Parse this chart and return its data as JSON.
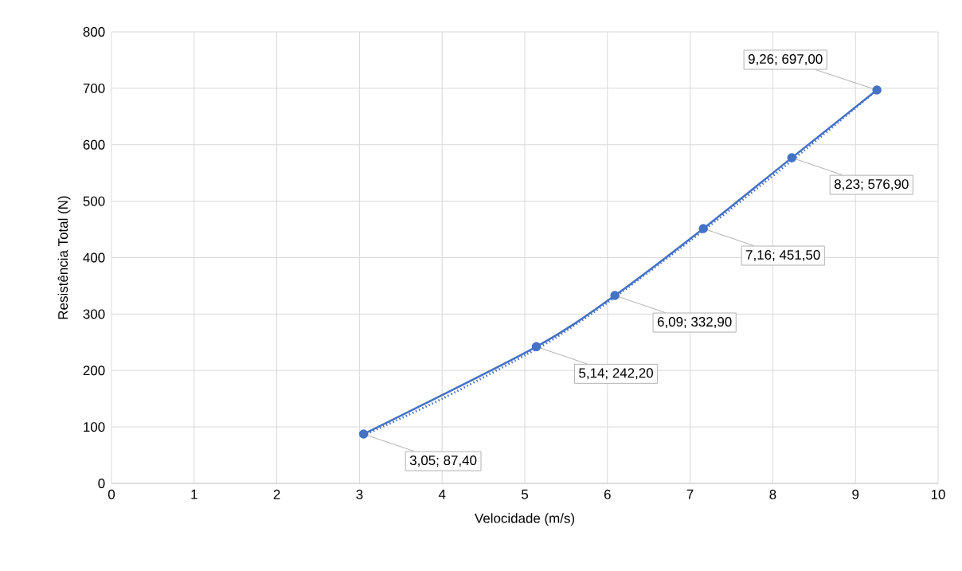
{
  "chart_data": {
    "type": "line",
    "xlabel": "Velocidade (m/s)",
    "ylabel": "Resistência Total (N)",
    "xlim": [
      0,
      10
    ],
    "ylim": [
      0,
      800
    ],
    "xticks": [
      0,
      1,
      2,
      3,
      4,
      5,
      6,
      7,
      8,
      9,
      10
    ],
    "yticks": [
      0,
      100,
      200,
      300,
      400,
      500,
      600,
      700,
      800
    ],
    "grid": true,
    "series": [
      {
        "color": "#4472c4",
        "marker": "circle",
        "line_style": "solid",
        "x": [
          3.05,
          5.14,
          6.09,
          7.16,
          8.23,
          9.26
        ],
        "values": [
          87.4,
          242.2,
          332.9,
          451.5,
          576.9,
          697.0
        ],
        "value_labels": [
          "3,05; 87,40",
          "5,14; 242,20",
          "6,09; 332,90",
          "7,16; 451,50",
          "8,23; 576,90",
          "9,26; 697,00"
        ]
      },
      {
        "color": "#4472c4",
        "marker": "none",
        "line_style": "dotted",
        "x": [
          3.05,
          4.0,
          5.14,
          5.6,
          6.09,
          7.16,
          8.23,
          9.26
        ],
        "values": [
          85,
          150,
          238,
          280,
          330,
          448,
          572,
          697
        ]
      }
    ]
  }
}
